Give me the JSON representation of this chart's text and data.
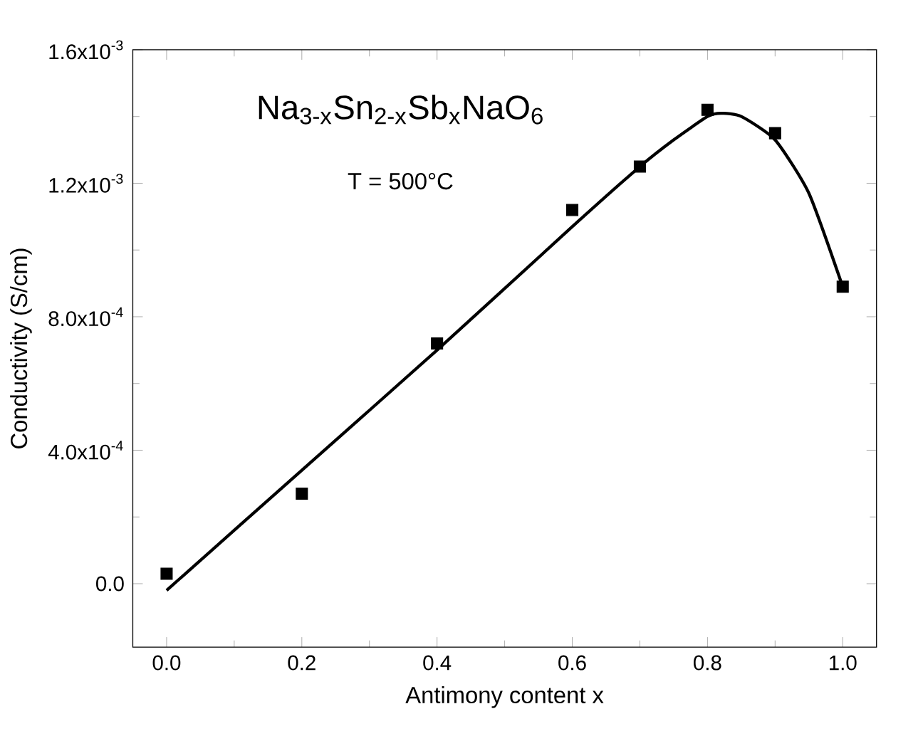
{
  "chart_data": {
    "type": "scatter",
    "xlabel": "Antimony content x",
    "ylabel": "Conductivity (S/cm)",
    "annotations": [
      "Na$_{3-x}$Sn$_{2-x}$Sb$_{x}$NaO$_{6}$",
      "T = 500°C"
    ],
    "xlim": [
      -0.05,
      1.05
    ],
    "ylim": [
      -0.00019,
      0.0016
    ],
    "xticks": [
      {
        "value": 0,
        "label": "0.0"
      },
      {
        "value": 0.2,
        "label": "0.2"
      },
      {
        "value": 0.4,
        "label": "0.4"
      },
      {
        "value": 0.6,
        "label": "0.6"
      },
      {
        "value": 0.8,
        "label": "0.8"
      },
      {
        "value": 1,
        "label": "1.0"
      }
    ],
    "yticks": [
      {
        "value": 0,
        "label": "0.0"
      },
      {
        "value": 0.0004,
        "label": "4.0x10$^{-4}$"
      },
      {
        "value": 0.0008,
        "label": "8.0x10$^{-4}$"
      },
      {
        "value": 0.0012,
        "label": "1.2x10$^{-3}$"
      },
      {
        "value": 0.0016,
        "label": "1.6x10$^{-3}$"
      }
    ],
    "series": [
      {
        "color": "#000000",
        "marker": "square",
        "x": [
          0,
          0.2,
          0.4,
          0.6,
          0.7,
          0.8,
          0.9,
          1.0
        ],
        "values": [
          3e-05,
          0.00027,
          0.00072,
          0.00112,
          0.00125,
          0.00142,
          0.00135,
          0.00089
        ]
      },
      {
        "type": "line",
        "color": "#000000",
        "line_style": "solid",
        "x": [
          0,
          0.2,
          0.4,
          0.6,
          0.7,
          0.75,
          0.8,
          0.82,
          0.85,
          0.9,
          0.95,
          1.0
        ],
        "values": [
          -2e-05,
          0.00034,
          0.0007,
          0.00107,
          0.00125,
          0.00133,
          0.0014,
          0.00141,
          0.0014,
          0.00133,
          0.00117,
          0.00089
        ]
      }
    ]
  }
}
